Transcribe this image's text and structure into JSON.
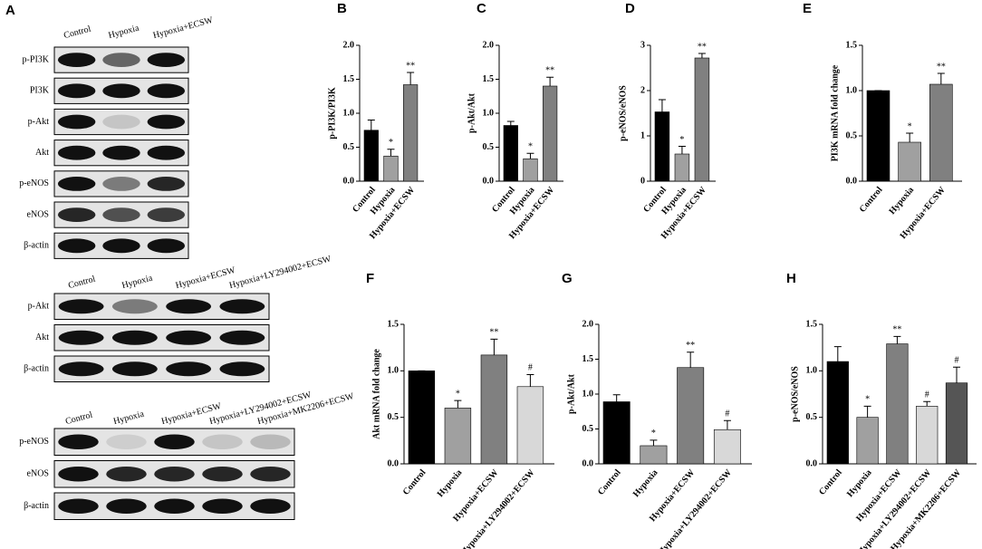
{
  "blots": [
    {
      "panel": "A",
      "lanes": [
        "Control",
        "Hypoxia",
        "Hypoxia+ECSW"
      ],
      "rows": [
        "p-PI3K",
        "PI3K",
        "p-Akt",
        "Akt",
        "p-eNOS",
        "eNOS",
        "β-actin"
      ]
    },
    {
      "lanes": [
        "Control",
        "Hypoxia",
        "Hypoxia+ECSW",
        "Hypoxia+LY294002+ECSW"
      ],
      "rows": [
        "p-Akt",
        "Akt",
        "β-actin"
      ]
    },
    {
      "lanes": [
        "Control",
        "Hypoxia",
        "Hypoxia+ECSW",
        "Hypoxia+LY294002+ECSW",
        "Hypoxia+MK2206+ECSW"
      ],
      "rows": [
        "p-eNOS",
        "eNOS",
        "β-actin"
      ]
    }
  ],
  "chart_data": [
    {
      "type": "bar",
      "panel": "B",
      "ylabel": "p-PI3K/PI3K",
      "categories": [
        "Control",
        "Hypoxia",
        "Hypoxia+ECSW"
      ],
      "values": [
        0.75,
        0.37,
        1.42
      ],
      "errors": [
        0.15,
        0.1,
        0.18
      ],
      "significance": [
        null,
        "*",
        "**"
      ],
      "colors": [
        "#000000",
        "#a0a0a0",
        "#808080"
      ],
      "ylim": [
        0,
        2
      ],
      "yticks": [
        {
          "value": 0,
          "label": "0.0"
        },
        0.5,
        {
          "value": 1,
          "label": "1.0"
        },
        1.5,
        {
          "value": 2,
          "label": "2.0"
        }
      ]
    },
    {
      "type": "bar",
      "panel": "C",
      "ylabel": "p-Akt/Akt",
      "categories": [
        "Control",
        "Hypoxia",
        "Hypoxia+ECSW"
      ],
      "values": [
        0.82,
        0.33,
        1.4
      ],
      "errors": [
        0.06,
        0.08,
        0.13
      ],
      "significance": [
        null,
        "*",
        "**"
      ],
      "colors": [
        "#000000",
        "#a0a0a0",
        "#808080"
      ],
      "ylim": [
        0,
        2
      ],
      "yticks": [
        {
          "value": 0,
          "label": "0.0"
        },
        0.5,
        {
          "value": 1,
          "label": "1.0"
        },
        1.5,
        {
          "value": 2,
          "label": "2.0"
        }
      ]
    },
    {
      "type": "bar",
      "panel": "D",
      "ylabel": "p-eNOS/eNOS",
      "categories": [
        "Control",
        "Hypoxia",
        "Hypoxia+ECSW"
      ],
      "values": [
        1.53,
        0.6,
        2.72
      ],
      "errors": [
        0.27,
        0.17,
        0.1
      ],
      "significance": [
        null,
        "*",
        "**"
      ],
      "colors": [
        "#000000",
        "#a0a0a0",
        "#808080"
      ],
      "ylim": [
        0,
        3
      ],
      "yticks": [
        0,
        1,
        2,
        3
      ]
    },
    {
      "type": "bar",
      "panel": "E",
      "ylabel": "PI3K mRNA fold change",
      "categories": [
        "Control",
        "Hypoxia",
        "Hypoxia+ECSW"
      ],
      "values": [
        1.0,
        0.43,
        1.07
      ],
      "errors": [
        0,
        0.1,
        0.12
      ],
      "significance": [
        null,
        "*",
        "**"
      ],
      "colors": [
        "#000000",
        "#a0a0a0",
        "#808080"
      ],
      "ylim": [
        0,
        1.5
      ],
      "yticks": [
        {
          "value": 0,
          "label": "0.0"
        },
        0.5,
        {
          "value": 1,
          "label": "1.0"
        },
        1.5
      ]
    },
    {
      "type": "bar",
      "panel": "F",
      "ylabel": "Akt mRNA fold change",
      "categories": [
        "Control",
        "Hypoxia",
        "Hypoxia+ECSW",
        "Hypoxia+LY294002+ECSW"
      ],
      "values": [
        1.0,
        0.6,
        1.17,
        0.83
      ],
      "errors": [
        0,
        0.08,
        0.17,
        0.13
      ],
      "significance": [
        null,
        "*",
        "**",
        "#"
      ],
      "colors": [
        "#000000",
        "#a0a0a0",
        "#808080",
        "#d8d8d8"
      ],
      "ylim": [
        0,
        1.5
      ],
      "yticks": [
        {
          "value": 0,
          "label": "0.0"
        },
        0.5,
        {
          "value": 1,
          "label": "1.0"
        },
        1.5
      ]
    },
    {
      "type": "bar",
      "panel": "G",
      "ylabel": "p-Akt/Akt",
      "categories": [
        "Control",
        "Hypoxia",
        "Hypoxia+ECSW",
        "Hypoxia+LY294002+ECSW"
      ],
      "values": [
        0.89,
        0.26,
        1.38,
        0.49
      ],
      "errors": [
        0.1,
        0.08,
        0.22,
        0.13
      ],
      "significance": [
        null,
        "*",
        "**",
        "#"
      ],
      "colors": [
        "#000000",
        "#a0a0a0",
        "#808080",
        "#d8d8d8"
      ],
      "ylim": [
        0,
        2
      ],
      "yticks": [
        {
          "value": 0,
          "label": "0.0"
        },
        0.5,
        {
          "value": 1,
          "label": "1.0"
        },
        1.5,
        {
          "value": 2,
          "label": "2.0"
        }
      ]
    },
    {
      "type": "bar",
      "panel": "H",
      "ylabel": "p-eNOS/eNOS",
      "categories": [
        "Control",
        "Hypoxia",
        "Hypoxia+ECSW",
        "Hypoxia+LY294002+ECSW",
        "Hypoxia+MK2206+ECSW"
      ],
      "values": [
        1.1,
        0.5,
        1.29,
        0.62,
        0.87
      ],
      "errors": [
        0.16,
        0.12,
        0.08,
        0.05,
        0.17
      ],
      "significance": [
        null,
        "*",
        "**",
        "#",
        "#"
      ],
      "colors": [
        "#000000",
        "#a0a0a0",
        "#808080",
        "#d8d8d8",
        "#555555"
      ],
      "ylim": [
        0,
        1.5
      ],
      "yticks": [
        {
          "value": 0,
          "label": "0.0"
        },
        0.5,
        {
          "value": 1,
          "label": "1.0"
        },
        1.5
      ]
    }
  ]
}
